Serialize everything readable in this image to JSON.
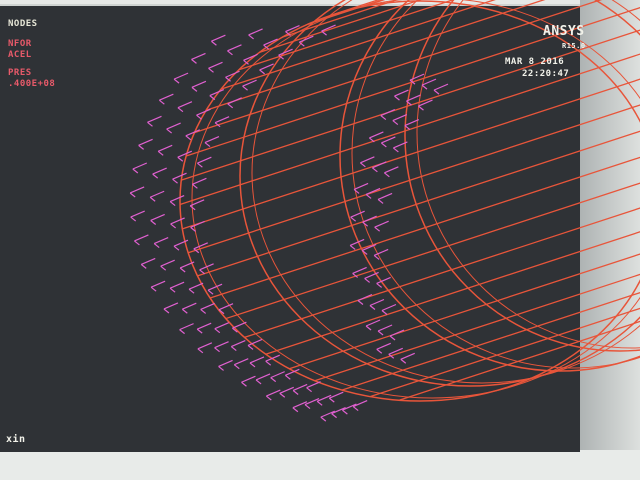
{
  "legend": {
    "title": "NODES",
    "items": [
      "NFOR",
      "ACEL"
    ],
    "pres_label": "PRES",
    "pres_value": ".400E+08"
  },
  "logo": {
    "name": "ANSYS",
    "version": "R15.0"
  },
  "date": "MAR  8 2016",
  "time": "22:20:47",
  "prompt": "xin",
  "colors": {
    "background": "#2f3236",
    "mesh": "#e8553a",
    "arrows": "#e060d0",
    "legend_title": "#e8e8d8",
    "legend_items": "#e85a6a"
  }
}
